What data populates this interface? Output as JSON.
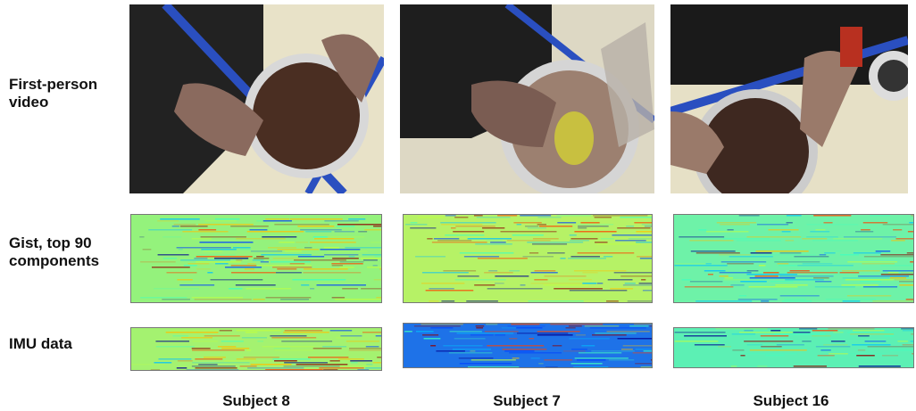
{
  "row_labels": [
    "First-person video",
    "Gist, top 90 components",
    "IMU data"
  ],
  "subjects": [
    "Subject 8",
    "Subject 7",
    "Subject 16"
  ]
}
